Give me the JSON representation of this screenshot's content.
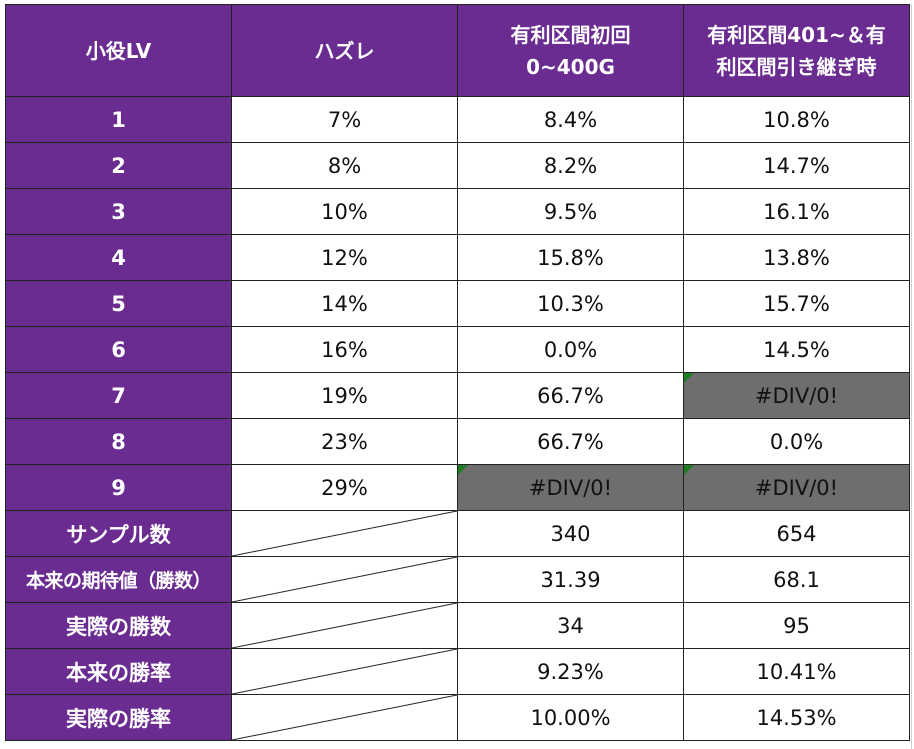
{
  "table": {
    "headers": {
      "col1": "小役LV",
      "col2": "ハズレ",
      "col3_line1": "有利区間初回",
      "col3_line2": "0~400G",
      "col4_line1": "有利区間401~＆有",
      "col4_line2": "利区間引き継ぎ時"
    },
    "rows": [
      {
        "label": "1",
        "hazure": "7%",
        "initial": "8.4%",
        "carry": "10.8%"
      },
      {
        "label": "2",
        "hazure": "8%",
        "initial": "8.2%",
        "carry": "14.7%"
      },
      {
        "label": "3",
        "hazure": "10%",
        "initial": "9.5%",
        "carry": "16.1%"
      },
      {
        "label": "4",
        "hazure": "12%",
        "initial": "15.8%",
        "carry": "13.8%"
      },
      {
        "label": "5",
        "hazure": "14%",
        "initial": "10.3%",
        "carry": "15.7%"
      },
      {
        "label": "6",
        "hazure": "16%",
        "initial": "0.0%",
        "carry": "14.5%"
      },
      {
        "label": "7",
        "hazure": "19%",
        "initial": "66.7%",
        "carry": "#DIV/0!"
      },
      {
        "label": "8",
        "hazure": "23%",
        "initial": "66.7%",
        "carry": "0.0%"
      },
      {
        "label": "9",
        "hazure": "29%",
        "initial": "#DIV/0!",
        "carry": "#DIV/0!"
      }
    ],
    "summary": [
      {
        "label": "サンプル数",
        "initial": "340",
        "carry": "654"
      },
      {
        "label": "本来の期待値（勝数）",
        "initial": "31.39",
        "carry": "68.1"
      },
      {
        "label": "実際の勝数",
        "initial": "34",
        "carry": "95"
      },
      {
        "label": "本来の勝率",
        "initial": "9.23%",
        "carry": "10.41%"
      },
      {
        "label": "実際の勝率",
        "initial": "10.00%",
        "carry": "14.53%"
      }
    ]
  },
  "colors": {
    "header_purple": "#6a2c91",
    "error_cell_gray": "#6e6e6e",
    "error_marker_green": "#1e7d22"
  }
}
